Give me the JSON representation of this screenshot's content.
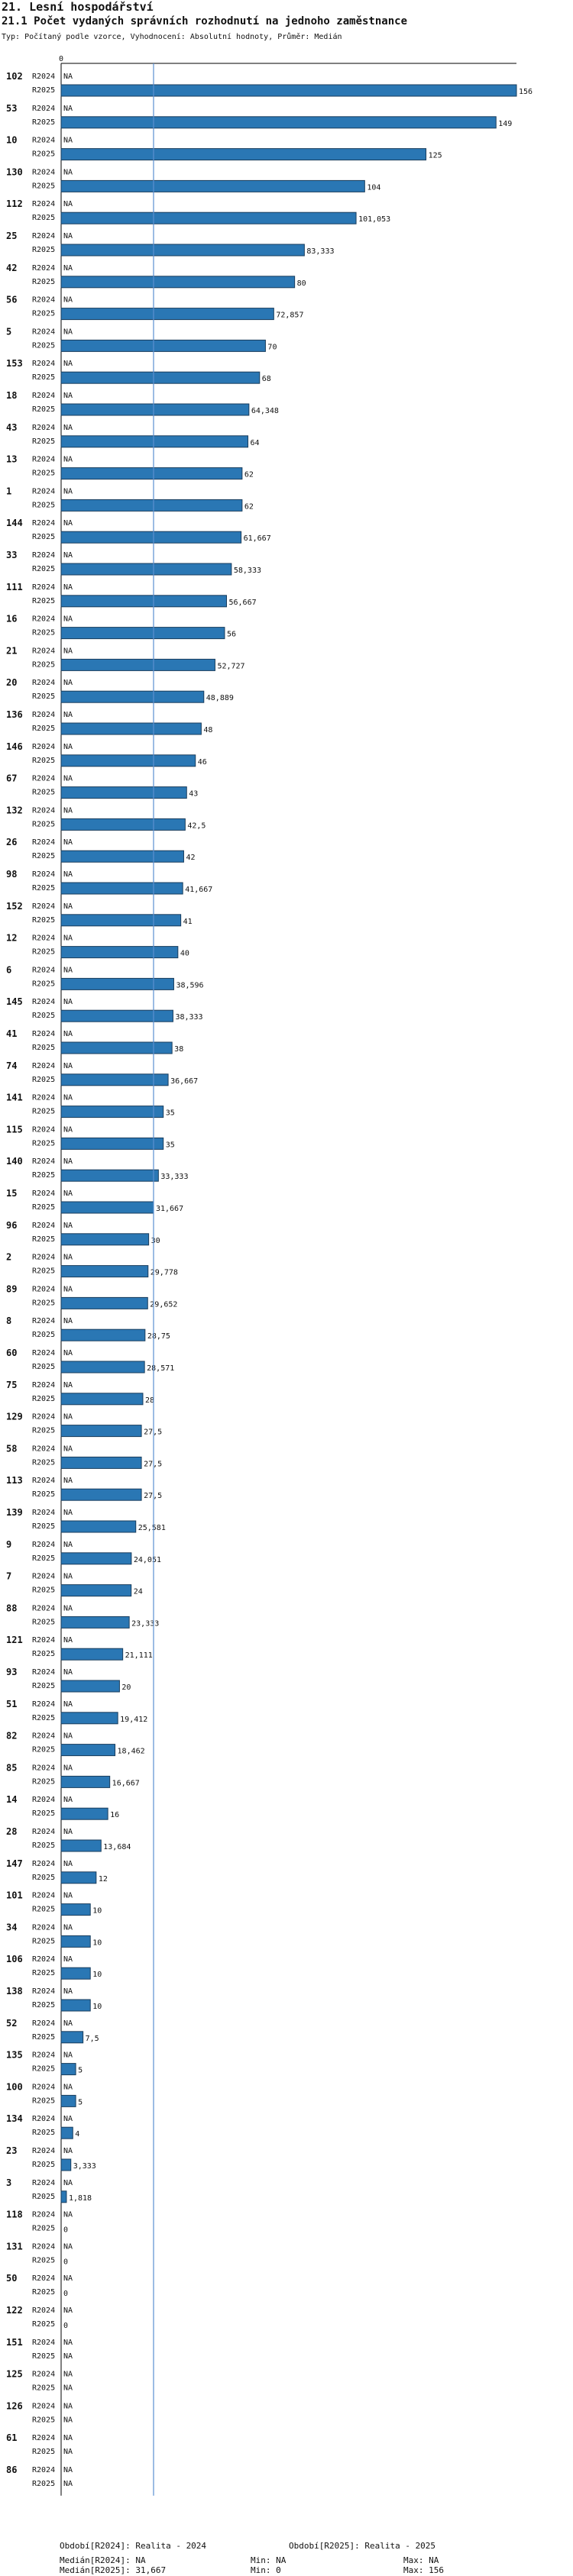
{
  "header": {
    "section": "21. Lesní hospodářství",
    "title": "21.1 Počet vydaných správních rozhodnutí na jednoho zaměstnance",
    "subtitle": "Typ: Počítaný podle vzorce, Vyhodnocení: Absolutní hodnoty, Průměr: Medián"
  },
  "colors": {
    "bar": "#2a77b4",
    "bar_stroke": "#1a3d5c",
    "median_line": "#5a8fd0",
    "axis": "#000000"
  },
  "chart_data": {
    "type": "bar",
    "orientation": "horizontal",
    "axis_zero_label": "0",
    "xlim": [
      0,
      156
    ],
    "series": [
      {
        "name": "R2024"
      },
      {
        "name": "R2025"
      }
    ],
    "median_line_value": 31.667,
    "missing_label": "NA",
    "groups": [
      {
        "id": "102",
        "R2024": "NA",
        "R2025": 156,
        "label2025": "156"
      },
      {
        "id": "53",
        "R2024": "NA",
        "R2025": 149,
        "label2025": "149"
      },
      {
        "id": "10",
        "R2024": "NA",
        "R2025": 125,
        "label2025": "125"
      },
      {
        "id": "130",
        "R2024": "NA",
        "R2025": 104,
        "label2025": "104"
      },
      {
        "id": "112",
        "R2024": "NA",
        "R2025": 101.053,
        "label2025": "101,053"
      },
      {
        "id": "25",
        "R2024": "NA",
        "R2025": 83.333,
        "label2025": "83,333"
      },
      {
        "id": "42",
        "R2024": "NA",
        "R2025": 80,
        "label2025": "80"
      },
      {
        "id": "56",
        "R2024": "NA",
        "R2025": 72.857,
        "label2025": "72,857"
      },
      {
        "id": "5",
        "R2024": "NA",
        "R2025": 70,
        "label2025": "70"
      },
      {
        "id": "153",
        "R2024": "NA",
        "R2025": 68,
        "label2025": "68"
      },
      {
        "id": "18",
        "R2024": "NA",
        "R2025": 64.348,
        "label2025": "64,348"
      },
      {
        "id": "43",
        "R2024": "NA",
        "R2025": 64,
        "label2025": "64"
      },
      {
        "id": "13",
        "R2024": "NA",
        "R2025": 62,
        "label2025": "62"
      },
      {
        "id": "1",
        "R2024": "NA",
        "R2025": 62,
        "label2025": "62"
      },
      {
        "id": "144",
        "R2024": "NA",
        "R2025": 61.667,
        "label2025": "61,667"
      },
      {
        "id": "33",
        "R2024": "NA",
        "R2025": 58.333,
        "label2025": "58,333"
      },
      {
        "id": "111",
        "R2024": "NA",
        "R2025": 56.667,
        "label2025": "56,667"
      },
      {
        "id": "16",
        "R2024": "NA",
        "R2025": 56,
        "label2025": "56"
      },
      {
        "id": "21",
        "R2024": "NA",
        "R2025": 52.727,
        "label2025": "52,727"
      },
      {
        "id": "20",
        "R2024": "NA",
        "R2025": 48.889,
        "label2025": "48,889"
      },
      {
        "id": "136",
        "R2024": "NA",
        "R2025": 48,
        "label2025": "48"
      },
      {
        "id": "146",
        "R2024": "NA",
        "R2025": 46,
        "label2025": "46"
      },
      {
        "id": "67",
        "R2024": "NA",
        "R2025": 43,
        "label2025": "43"
      },
      {
        "id": "132",
        "R2024": "NA",
        "R2025": 42.5,
        "label2025": "42,5"
      },
      {
        "id": "26",
        "R2024": "NA",
        "R2025": 42,
        "label2025": "42"
      },
      {
        "id": "98",
        "R2024": "NA",
        "R2025": 41.667,
        "label2025": "41,667"
      },
      {
        "id": "152",
        "R2024": "NA",
        "R2025": 41,
        "label2025": "41"
      },
      {
        "id": "12",
        "R2024": "NA",
        "R2025": 40,
        "label2025": "40"
      },
      {
        "id": "6",
        "R2024": "NA",
        "R2025": 38.596,
        "label2025": "38,596"
      },
      {
        "id": "145",
        "R2024": "NA",
        "R2025": 38.333,
        "label2025": "38,333"
      },
      {
        "id": "41",
        "R2024": "NA",
        "R2025": 38,
        "label2025": "38"
      },
      {
        "id": "74",
        "R2024": "NA",
        "R2025": 36.667,
        "label2025": "36,667"
      },
      {
        "id": "141",
        "R2024": "NA",
        "R2025": 35,
        "label2025": "35"
      },
      {
        "id": "115",
        "R2024": "NA",
        "R2025": 35,
        "label2025": "35"
      },
      {
        "id": "140",
        "R2024": "NA",
        "R2025": 33.333,
        "label2025": "33,333"
      },
      {
        "id": "15",
        "R2024": "NA",
        "R2025": 31.667,
        "label2025": "31,667"
      },
      {
        "id": "96",
        "R2024": "NA",
        "R2025": 30,
        "label2025": "30"
      },
      {
        "id": "2",
        "R2024": "NA",
        "R2025": 29.778,
        "label2025": "29,778"
      },
      {
        "id": "89",
        "R2024": "NA",
        "R2025": 29.652,
        "label2025": "29,652"
      },
      {
        "id": "8",
        "R2024": "NA",
        "R2025": 28.75,
        "label2025": "28,75"
      },
      {
        "id": "60",
        "R2024": "NA",
        "R2025": 28.571,
        "label2025": "28,571"
      },
      {
        "id": "75",
        "R2024": "NA",
        "R2025": 28,
        "label2025": "28"
      },
      {
        "id": "129",
        "R2024": "NA",
        "R2025": 27.5,
        "label2025": "27,5"
      },
      {
        "id": "58",
        "R2024": "NA",
        "R2025": 27.5,
        "label2025": "27,5"
      },
      {
        "id": "113",
        "R2024": "NA",
        "R2025": 27.5,
        "label2025": "27,5"
      },
      {
        "id": "139",
        "R2024": "NA",
        "R2025": 25.581,
        "label2025": "25,581"
      },
      {
        "id": "9",
        "R2024": "NA",
        "R2025": 24.051,
        "label2025": "24,051"
      },
      {
        "id": "7",
        "R2024": "NA",
        "R2025": 24,
        "label2025": "24"
      },
      {
        "id": "88",
        "R2024": "NA",
        "R2025": 23.333,
        "label2025": "23,333"
      },
      {
        "id": "121",
        "R2024": "NA",
        "R2025": 21.111,
        "label2025": "21,111"
      },
      {
        "id": "93",
        "R2024": "NA",
        "R2025": 20,
        "label2025": "20"
      },
      {
        "id": "51",
        "R2024": "NA",
        "R2025": 19.412,
        "label2025": "19,412"
      },
      {
        "id": "82",
        "R2024": "NA",
        "R2025": 18.462,
        "label2025": "18,462"
      },
      {
        "id": "85",
        "R2024": "NA",
        "R2025": 16.667,
        "label2025": "16,667"
      },
      {
        "id": "14",
        "R2024": "NA",
        "R2025": 16,
        "label2025": "16"
      },
      {
        "id": "28",
        "R2024": "NA",
        "R2025": 13.684,
        "label2025": "13,684"
      },
      {
        "id": "147",
        "R2024": "NA",
        "R2025": 12,
        "label2025": "12"
      },
      {
        "id": "101",
        "R2024": "NA",
        "R2025": 10,
        "label2025": "10"
      },
      {
        "id": "34",
        "R2024": "NA",
        "R2025": 10,
        "label2025": "10"
      },
      {
        "id": "106",
        "R2024": "NA",
        "R2025": 10,
        "label2025": "10"
      },
      {
        "id": "138",
        "R2024": "NA",
        "R2025": 10,
        "label2025": "10"
      },
      {
        "id": "52",
        "R2024": "NA",
        "R2025": 7.5,
        "label2025": "7,5"
      },
      {
        "id": "135",
        "R2024": "NA",
        "R2025": 5,
        "label2025": "5"
      },
      {
        "id": "100",
        "R2024": "NA",
        "R2025": 5,
        "label2025": "5"
      },
      {
        "id": "134",
        "R2024": "NA",
        "R2025": 4,
        "label2025": "4"
      },
      {
        "id": "23",
        "R2024": "NA",
        "R2025": 3.333,
        "label2025": "3,333"
      },
      {
        "id": "3",
        "R2024": "NA",
        "R2025": 1.818,
        "label2025": "1,818"
      },
      {
        "id": "118",
        "R2024": "NA",
        "R2025": 0,
        "label2025": "0"
      },
      {
        "id": "131",
        "R2024": "NA",
        "R2025": 0,
        "label2025": "0"
      },
      {
        "id": "50",
        "R2024": "NA",
        "R2025": 0,
        "label2025": "0"
      },
      {
        "id": "122",
        "R2024": "NA",
        "R2025": 0,
        "label2025": "0"
      },
      {
        "id": "151",
        "R2024": "NA",
        "R2025": "NA",
        "label2025": "NA"
      },
      {
        "id": "125",
        "R2024": "NA",
        "R2025": "NA",
        "label2025": "NA"
      },
      {
        "id": "126",
        "R2024": "NA",
        "R2025": "NA",
        "label2025": "NA"
      },
      {
        "id": "61",
        "R2024": "NA",
        "R2025": "NA",
        "label2025": "NA"
      },
      {
        "id": "86",
        "R2024": "NA",
        "R2025": "NA",
        "label2025": "NA"
      }
    ]
  },
  "footer": {
    "period1": "Období[R2024]: Realita - 2024",
    "period2": "Období[R2025]: Realita - 2025",
    "median1": "Medián[R2024]: NA",
    "min1": "Min: NA",
    "max1": "Max: NA",
    "median2": "Medián[R2025]: 31,667",
    "min2": "Min: 0",
    "max2": "Max: 156"
  }
}
